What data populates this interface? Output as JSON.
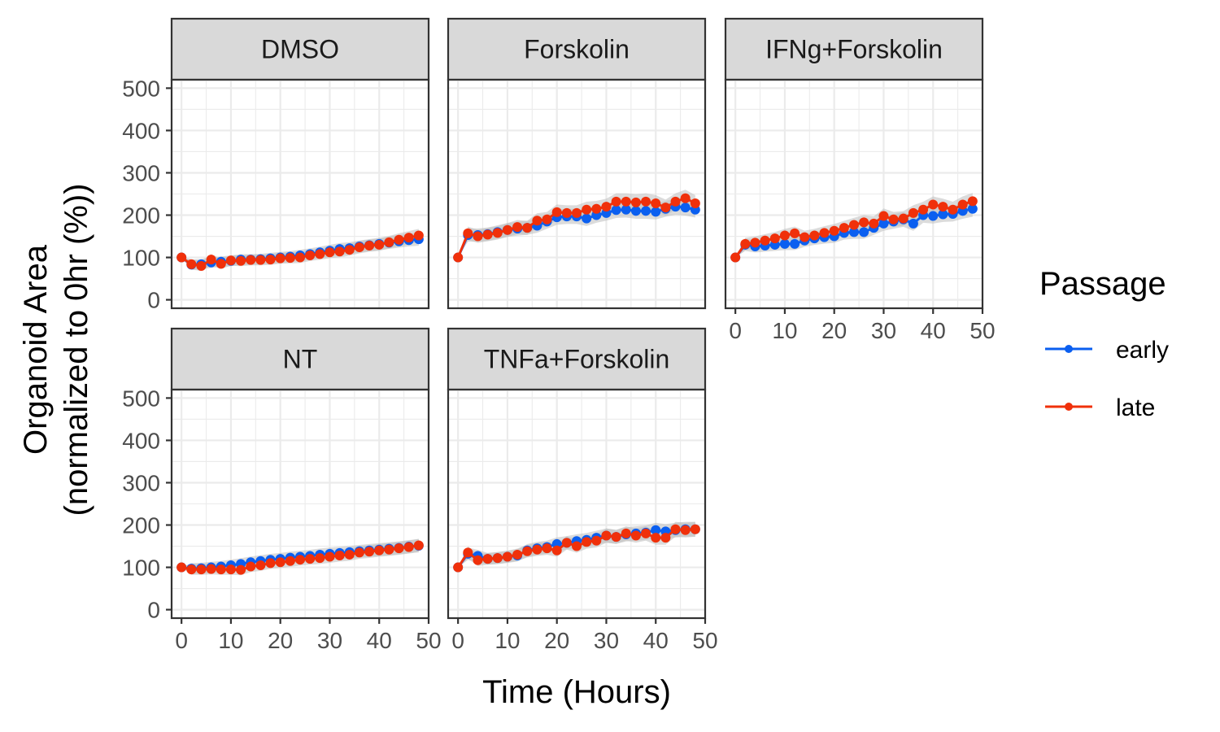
{
  "chart_data": {
    "type": "line",
    "xlabel": "Time (Hours)",
    "ylabel_lines": [
      "Organoid Area",
      "(normalized to 0hr (%))"
    ],
    "xlim": [
      -2,
      50
    ],
    "ylim": [
      -20,
      520
    ],
    "xticks": [
      0,
      10,
      20,
      30,
      40,
      50
    ],
    "yticks": [
      0,
      100,
      200,
      300,
      400,
      500
    ],
    "grid": true,
    "x": [
      0,
      2,
      4,
      6,
      8,
      10,
      12,
      14,
      16,
      18,
      20,
      22,
      24,
      26,
      28,
      30,
      32,
      34,
      36,
      38,
      40,
      42,
      44,
      46,
      48
    ],
    "legend": {
      "title": "Passage",
      "position": "right",
      "entries": [
        {
          "name": "early",
          "color": "#0b5ff0"
        },
        {
          "name": "late",
          "color": "#f0300a"
        }
      ]
    },
    "panels": [
      {
        "title": "DMSO",
        "series": [
          {
            "name": "early",
            "values": [
              100,
              83,
              84,
              88,
              90,
              92,
              95,
              95,
              96,
              98,
              100,
              102,
              105,
              108,
              112,
              116,
              120,
              122,
              126,
              129,
              132,
              135,
              138,
              141,
              143
            ]
          },
          {
            "name": "late",
            "values": [
              100,
              84,
              80,
              95,
              85,
              93,
              92,
              94,
              94,
              95,
              98,
              99,
              100,
              105,
              108,
              112,
              114,
              118,
              124,
              128,
              130,
              136,
              142,
              147,
              152
            ]
          }
        ]
      },
      {
        "title": "Forskolin",
        "series": [
          {
            "name": "early",
            "values": [
              100,
              153,
              153,
              155,
              160,
              165,
              168,
              170,
              175,
              185,
              195,
              197,
              197,
              192,
              200,
              205,
              212,
              213,
              210,
              210,
              208,
              215,
              220,
              218,
              213
            ]
          },
          {
            "name": "late",
            "values": [
              100,
              157,
              150,
              154,
              158,
              165,
              172,
              170,
              187,
              190,
              207,
              205,
              205,
              213,
              215,
              220,
              232,
              232,
              230,
              232,
              228,
              218,
              232,
              240,
              228
            ]
          }
        ]
      },
      {
        "title": "IFNg+Forskolin",
        "series": [
          {
            "name": "early",
            "values": [
              100,
              130,
              126,
              128,
              130,
              132,
              132,
              140,
              145,
              148,
              150,
              158,
              160,
              160,
              170,
              180,
              185,
              190,
              180,
              200,
              198,
              202,
              203,
              210,
              215
            ]
          },
          {
            "name": "late",
            "values": [
              100,
              132,
              135,
              140,
              145,
              152,
              157,
              148,
              152,
              158,
              163,
              170,
              177,
              183,
              180,
              198,
              190,
              192,
              205,
              213,
              225,
              220,
              213,
              225,
              233
            ]
          }
        ]
      },
      {
        "title": "NT",
        "series": [
          {
            "name": "early",
            "values": [
              100,
              97,
              98,
              100,
              102,
              105,
              108,
              112,
              115,
              118,
              120,
              123,
              125,
              127,
              130,
              132,
              134,
              136,
              138,
              140,
              142,
              144,
              146,
              149,
              151
            ]
          },
          {
            "name": "late",
            "values": [
              100,
              95,
              95,
              96,
              95,
              95,
              94,
              102,
              105,
              110,
              112,
              115,
              118,
              120,
              122,
              125,
              128,
              130,
              135,
              137,
              140,
              142,
              145,
              148,
              152
            ]
          }
        ]
      },
      {
        "title": "TNFa+Forskolin",
        "series": [
          {
            "name": "early",
            "values": [
              100,
              132,
              127,
              120,
              122,
              125,
              128,
              140,
              145,
              148,
              155,
              158,
              162,
              165,
              170,
              175,
              172,
              178,
              180,
              182,
              188,
              185,
              188,
              190,
              190
            ]
          },
          {
            "name": "late",
            "values": [
              100,
              135,
              117,
              120,
              122,
              125,
              130,
              138,
              142,
              145,
              140,
              158,
              150,
              160,
              163,
              175,
              172,
              180,
              175,
              180,
              170,
              170,
              190,
              188,
              190
            ]
          }
        ]
      }
    ]
  }
}
